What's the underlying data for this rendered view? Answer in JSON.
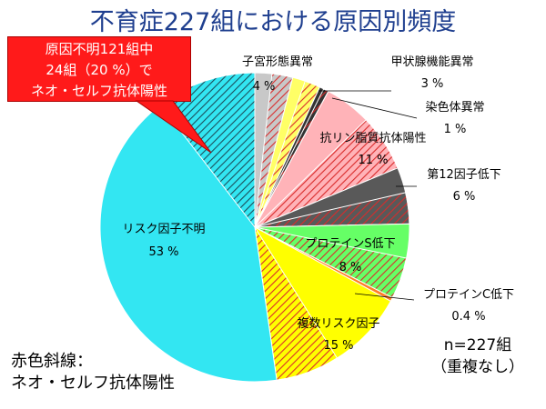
{
  "title": "不育症227組における原因別頻度",
  "callout": {
    "line1": "原因不明121組中",
    "line2": "24組（20 %）で",
    "line3": "ネオ・セルフ抗体陽性"
  },
  "note": {
    "line1": "赤色斜線：",
    "line2": "ネオ・セルフ抗体陽性"
  },
  "sample": {
    "line1": "n=227組",
    "line2": "（重複なし）"
  },
  "colors": {
    "title": "#1f3f8f",
    "callout": "#ff1a1a",
    "hatch_red": "#d92b2b"
  },
  "chart_data": {
    "type": "pie",
    "title": "不育症227組における原因別頻度",
    "n": "n=227組",
    "slices": [
      {
        "name": "子宮形態異常",
        "value_label": "4 %",
        "value": 4,
        "color": "#c8c8c8",
        "hatch": true
      },
      {
        "name": "甲状腺機能異常",
        "value_label": "3 %",
        "value": 3,
        "color": "#ffff66",
        "hatch": true
      },
      {
        "name": "染色体異常",
        "value_label": "1 %",
        "value": 1,
        "color": "#333333",
        "hatch": true
      },
      {
        "name": "抗リン脂質抗体陽性",
        "value_label": "11 %",
        "value": 11,
        "color": "#ffb3b8",
        "hatch": true
      },
      {
        "name": "第12因子低下",
        "value_label": "6 %",
        "value": 6,
        "color": "#595959",
        "hatch": true
      },
      {
        "name": "プロテインS低下",
        "value_label": "8 %",
        "value": 8,
        "color": "#66ff66",
        "hatch": true
      },
      {
        "name": "プロテインC低下",
        "value_label": "0.4 %",
        "value": 0.4,
        "color": "#ff7f27",
        "hatch": false
      },
      {
        "name": "複数リスク因子",
        "value_label": "15 %",
        "value": 15,
        "color": "#ffff00",
        "hatch": true
      },
      {
        "name": "リスク因子不明",
        "value_label": "53 %",
        "value": 53,
        "color": "#33e6f2",
        "hatch": true
      }
    ]
  }
}
